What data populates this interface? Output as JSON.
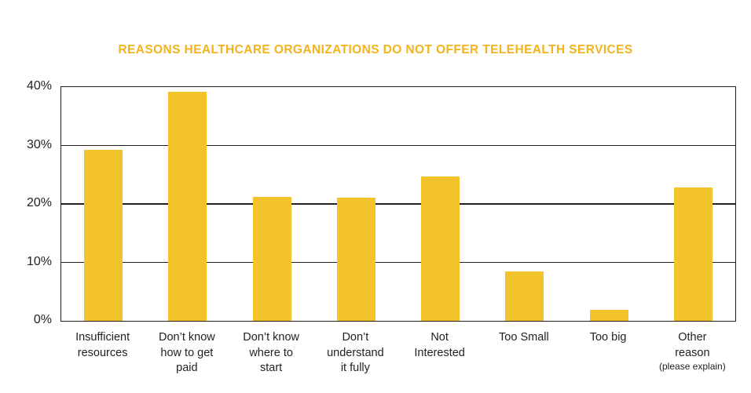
{
  "chart_data": {
    "type": "bar",
    "title": "REASONS HEALTHCARE ORGANIZATIONS DO NOT OFFER TELEHEALTH SERVICES",
    "categories": [
      {
        "lines": [
          "Insufficient",
          "resources"
        ]
      },
      {
        "lines": [
          "Don’t know",
          "how to get",
          "paid"
        ]
      },
      {
        "lines": [
          "Don’t know",
          "where to",
          "start"
        ]
      },
      {
        "lines": [
          "Don’t",
          "understand",
          "it fully"
        ]
      },
      {
        "lines": [
          "Not",
          "Interested"
        ]
      },
      {
        "lines": [
          "Too Small"
        ]
      },
      {
        "lines": [
          "Too big"
        ]
      },
      {
        "lines": [
          "Other",
          "reason"
        ],
        "note": "(please explain)"
      }
    ],
    "values": [
      29.3,
      39.2,
      21.2,
      21.1,
      24.7,
      8.5,
      1.9,
      22.8
    ],
    "xlabel": "",
    "ylabel": "",
    "ylim": [
      0,
      40
    ],
    "yticks": [
      {
        "value": 0,
        "label": "0%"
      },
      {
        "value": 10,
        "label": "10%"
      },
      {
        "value": 20,
        "label": "20%"
      },
      {
        "value": 30,
        "label": "30%"
      },
      {
        "value": 40,
        "label": "40%"
      }
    ],
    "grid": "horizontal",
    "legend": "none",
    "colors": {
      "bar": "#F3C32C",
      "title": "#F2B31C",
      "axis": "#231F20",
      "text": "#231F20",
      "background": "#FFFFFF"
    }
  }
}
